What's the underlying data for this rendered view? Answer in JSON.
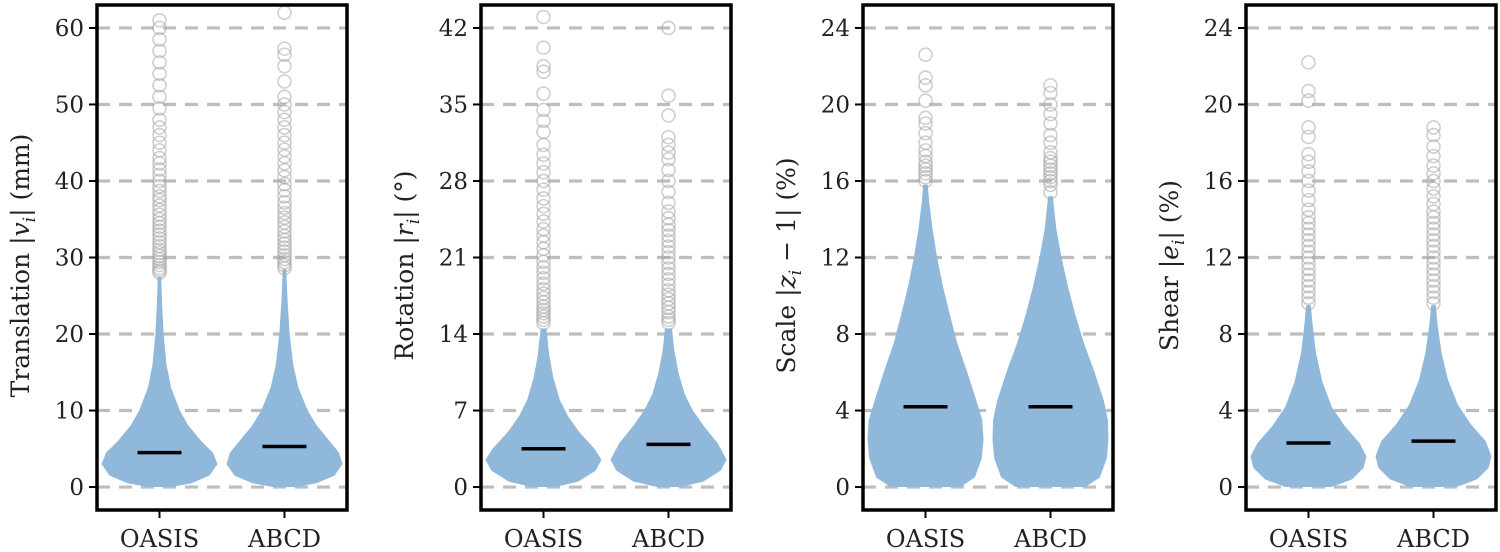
{
  "chart_data": [
    {
      "type": "violin",
      "ylabel": "Translation |v_i| (mm)",
      "ylabel_parts": [
        {
          "t": "Translation |"
        },
        {
          "t": "v",
          "it": true
        },
        {
          "t": "i",
          "sub": true
        },
        {
          "t": "| (mm)"
        }
      ],
      "categories": [
        "OASIS",
        "ABCD"
      ],
      "ylim": [
        -3,
        63
      ],
      "yticks": [
        0,
        10,
        20,
        30,
        40,
        50,
        60
      ],
      "ytick_labels": [
        "0",
        "10",
        "20",
        "30",
        "40",
        "50",
        "60"
      ],
      "grid": "horizontal dashed",
      "series": [
        {
          "category": "OASIS",
          "median": 4.5,
          "whisker_max": 27.5,
          "profile": [
            [
              0,
              0.2
            ],
            [
              0.5,
              0.55
            ],
            [
              1.5,
              0.86
            ],
            [
              3,
              1.0
            ],
            [
              4.5,
              0.92
            ],
            [
              6,
              0.72
            ],
            [
              8,
              0.5
            ],
            [
              10,
              0.35
            ],
            [
              13,
              0.2
            ],
            [
              16,
              0.12
            ],
            [
              20,
              0.07
            ],
            [
              24,
              0.045
            ],
            [
              27.5,
              0.03
            ]
          ],
          "outliers": [
            28,
            28.3,
            28.6,
            29,
            29.4,
            29.8,
            30.2,
            30.6,
            31,
            31.5,
            32,
            32.5,
            33,
            33.5,
            34,
            34.5,
            35,
            35.6,
            36.2,
            36.8,
            37.5,
            38,
            38.7,
            39.3,
            40,
            40.8,
            41.5,
            42.3,
            43,
            44,
            45,
            46,
            47,
            48,
            49.5,
            51,
            52.5,
            54,
            55.5,
            57,
            58.5,
            60,
            61
          ]
        },
        {
          "category": "ABCD",
          "median": 5.3,
          "whisker_max": 28.5,
          "profile": [
            [
              0,
              0.2
            ],
            [
              0.5,
              0.55
            ],
            [
              1.5,
              0.86
            ],
            [
              3,
              1.0
            ],
            [
              4.5,
              0.94
            ],
            [
              6,
              0.78
            ],
            [
              8,
              0.56
            ],
            [
              10,
              0.4
            ],
            [
              13,
              0.24
            ],
            [
              16,
              0.15
            ],
            [
              20,
              0.09
            ],
            [
              24,
              0.055
            ],
            [
              28.5,
              0.03
            ]
          ],
          "outliers": [
            28.6,
            29,
            29.4,
            29.8,
            30.3,
            30.8,
            31.3,
            31.8,
            32.3,
            32.8,
            33.4,
            34,
            34.6,
            35.2,
            35.8,
            36.5,
            37.2,
            38,
            38.8,
            39.6,
            40.5,
            41.4,
            42.3,
            43.2,
            44.1,
            45,
            46,
            47,
            48,
            49,
            50,
            51,
            53,
            55,
            56.5,
            57.3,
            62
          ]
        }
      ]
    },
    {
      "type": "violin",
      "ylabel": "Rotation |r_i| (°)",
      "ylabel_parts": [
        {
          "t": "Rotation |"
        },
        {
          "t": "r",
          "it": true
        },
        {
          "t": "i",
          "sub": true
        },
        {
          "t": "| (°)"
        }
      ],
      "categories": [
        "OASIS",
        "ABCD"
      ],
      "ylim": [
        -2.1,
        44.1
      ],
      "yticks": [
        0,
        7,
        14,
        21,
        28,
        35,
        42
      ],
      "ytick_labels": [
        "0",
        "7",
        "14",
        "21",
        "28",
        "35",
        "42"
      ],
      "grid": "horizontal dashed",
      "series": [
        {
          "category": "OASIS",
          "median": 3.5,
          "whisker_max": 14.5,
          "profile": [
            [
              0,
              0.2
            ],
            [
              0.5,
              0.6
            ],
            [
              1.5,
              0.9
            ],
            [
              2.5,
              1.0
            ],
            [
              3.5,
              0.88
            ],
            [
              5,
              0.62
            ],
            [
              6.5,
              0.42
            ],
            [
              8,
              0.28
            ],
            [
              10,
              0.17
            ],
            [
              12,
              0.1
            ],
            [
              14.5,
              0.05
            ]
          ],
          "outliers": [
            15,
            15.3,
            15.6,
            15.9,
            16.2,
            16.5,
            16.9,
            17.3,
            17.7,
            18.1,
            18.6,
            19.1,
            19.6,
            20.1,
            20.6,
            21.2,
            21.8,
            22.4,
            23,
            23.6,
            24.3,
            25,
            25.7,
            26.4,
            27.2,
            28,
            28.8,
            29.6,
            30.4,
            31.3,
            32.5,
            33.5,
            34.5,
            36,
            38,
            38.5,
            40.2,
            43
          ]
        },
        {
          "category": "ABCD",
          "median": 3.9,
          "whisker_max": 14.5,
          "profile": [
            [
              0,
              0.2
            ],
            [
              0.5,
              0.6
            ],
            [
              1.5,
              0.9
            ],
            [
              2.5,
              1.0
            ],
            [
              4,
              0.85
            ],
            [
              5.5,
              0.62
            ],
            [
              7,
              0.42
            ],
            [
              8.5,
              0.28
            ],
            [
              10.5,
              0.17
            ],
            [
              12.5,
              0.1
            ],
            [
              14.5,
              0.06
            ]
          ],
          "outliers": [
            15,
            15.3,
            15.6,
            16,
            16.4,
            16.8,
            17.2,
            17.6,
            18,
            18.5,
            19,
            19.5,
            20,
            20.5,
            21,
            21.5,
            22,
            22.5,
            23,
            23.5,
            24,
            24.6,
            25.2,
            26,
            27,
            28,
            29,
            30,
            30.6,
            31.3,
            32,
            34,
            35.8,
            42
          ]
        }
      ]
    },
    {
      "type": "violin",
      "ylabel": "Scale |z_i − 1| (%)",
      "ylabel_parts": [
        {
          "t": "Scale |"
        },
        {
          "t": "z",
          "it": true
        },
        {
          "t": "i",
          "sub": true
        },
        {
          "t": " − 1| (%)"
        }
      ],
      "categories": [
        "OASIS",
        "ABCD"
      ],
      "ylim": [
        -1.2,
        25.2
      ],
      "yticks": [
        0,
        4,
        8,
        12,
        16,
        20,
        24
      ],
      "ytick_labels": [
        "0",
        "4",
        "8",
        "12",
        "16",
        "20",
        "24"
      ],
      "grid": "horizontal dashed",
      "series": [
        {
          "category": "OASIS",
          "median": 4.2,
          "whisker_max": 15.8,
          "profile": [
            [
              0,
              0.6
            ],
            [
              0.5,
              0.85
            ],
            [
              1.5,
              0.97
            ],
            [
              2.5,
              1.0
            ],
            [
              3.5,
              0.98
            ],
            [
              4.5,
              0.88
            ],
            [
              6,
              0.72
            ],
            [
              7.5,
              0.55
            ],
            [
              9,
              0.42
            ],
            [
              10.5,
              0.3
            ],
            [
              12,
              0.2
            ],
            [
              13.5,
              0.12
            ],
            [
              15,
              0.06
            ],
            [
              15.8,
              0.04
            ]
          ],
          "outliers": [
            16,
            16.2,
            16.4,
            16.6,
            16.8,
            17,
            17.3,
            17.6,
            18,
            18.5,
            19,
            19.3,
            20.2,
            21,
            21.4,
            22.6
          ]
        },
        {
          "category": "ABCD",
          "median": 4.2,
          "whisker_max": 15.2,
          "profile": [
            [
              0,
              0.6
            ],
            [
              0.5,
              0.85
            ],
            [
              1.5,
              0.97
            ],
            [
              2.5,
              1.0
            ],
            [
              3.5,
              0.99
            ],
            [
              4.5,
              0.92
            ],
            [
              6,
              0.76
            ],
            [
              7.5,
              0.58
            ],
            [
              9,
              0.43
            ],
            [
              10.5,
              0.3
            ],
            [
              12,
              0.19
            ],
            [
              13.5,
              0.1
            ],
            [
              15.2,
              0.04
            ]
          ],
          "outliers": [
            15.4,
            15.8,
            16,
            16.2,
            16.4,
            16.6,
            16.8,
            17,
            17.2,
            17.5,
            18,
            18.4,
            19,
            19.5,
            20,
            20.6,
            21
          ]
        }
      ]
    },
    {
      "type": "violin",
      "ylabel": "Shear |e_i| (%)",
      "ylabel_parts": [
        {
          "t": "Shear |"
        },
        {
          "t": "e",
          "it": true
        },
        {
          "t": "i",
          "sub": true
        },
        {
          "t": "| (%)"
        }
      ],
      "categories": [
        "OASIS",
        "ABCD"
      ],
      "ylim": [
        -1.2,
        25.2
      ],
      "yticks": [
        0,
        4,
        8,
        12,
        16,
        20,
        24
      ],
      "ytick_labels": [
        "0",
        "4",
        "8",
        "12",
        "16",
        "20",
        "24"
      ],
      "grid": "horizontal dashed",
      "series": [
        {
          "category": "OASIS",
          "median": 2.3,
          "whisker_max": 9.5,
          "profile": [
            [
              0,
              0.4
            ],
            [
              0.4,
              0.75
            ],
            [
              1,
              0.95
            ],
            [
              1.6,
              1.0
            ],
            [
              2.3,
              0.88
            ],
            [
              3.2,
              0.62
            ],
            [
              4.2,
              0.4
            ],
            [
              5.5,
              0.24
            ],
            [
              7,
              0.13
            ],
            [
              8.5,
              0.07
            ],
            [
              9.5,
              0.04
            ]
          ],
          "outliers": [
            9.6,
            9.9,
            10.2,
            10.5,
            10.8,
            11.1,
            11.4,
            11.7,
            12,
            12.3,
            12.6,
            12.9,
            13.2,
            13.5,
            13.8,
            14.1,
            14.5,
            15,
            15.5,
            16,
            16.5,
            17,
            17.4,
            18.3,
            18.8,
            20.2,
            20.7,
            22.2
          ]
        },
        {
          "category": "ABCD",
          "median": 2.4,
          "whisker_max": 9.5,
          "profile": [
            [
              0,
              0.4
            ],
            [
              0.4,
              0.75
            ],
            [
              1,
              0.95
            ],
            [
              1.6,
              1.0
            ],
            [
              2.4,
              0.9
            ],
            [
              3.3,
              0.64
            ],
            [
              4.3,
              0.42
            ],
            [
              5.6,
              0.25
            ],
            [
              7,
              0.14
            ],
            [
              8.5,
              0.07
            ],
            [
              9.5,
              0.04
            ]
          ],
          "outliers": [
            9.6,
            9.9,
            10.2,
            10.5,
            10.8,
            11.1,
            11.4,
            11.7,
            12,
            12.3,
            12.6,
            12.9,
            13.2,
            13.5,
            13.8,
            14.1,
            14.4,
            14.8,
            15.2,
            15.6,
            16,
            16.4,
            16.8,
            17.3,
            17.8,
            18.4,
            18.8
          ]
        }
      ]
    }
  ],
  "colors": {
    "violin_fill": "#8fb8da",
    "median_line": "#000000",
    "outlier_stroke": "#a8a8a8",
    "grid": "#bdbdbd",
    "axes": "#000000"
  }
}
